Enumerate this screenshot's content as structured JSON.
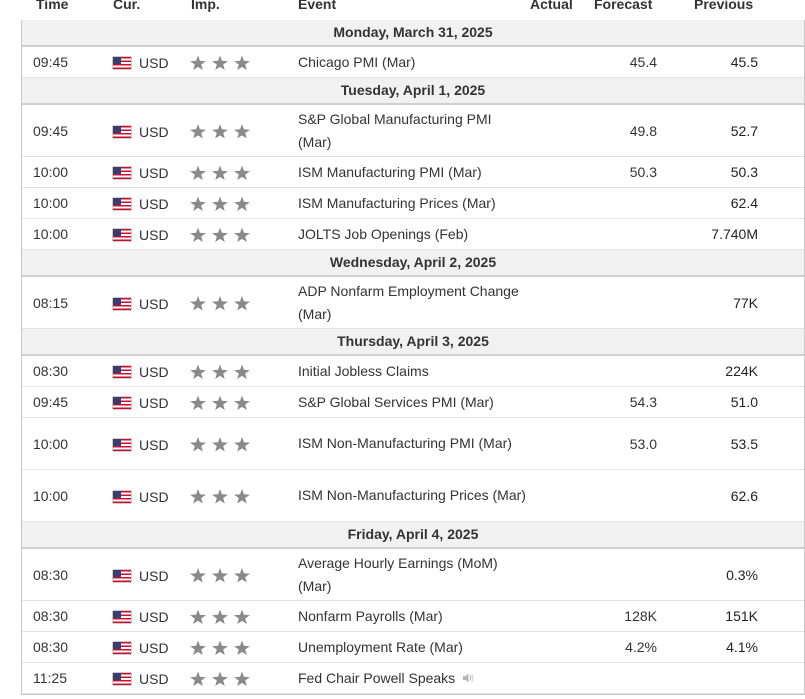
{
  "headers": {
    "time": "Time",
    "currency": "Cur.",
    "importance": "Imp.",
    "event": "Event",
    "actual": "Actual",
    "forecast": "Forecast",
    "previous": "Previous"
  },
  "colors": {
    "day_header_bg": "#f1f1f1",
    "star": "#8a8a8a",
    "border": "#c8c8c8"
  },
  "days": [
    {
      "label": "Monday, March 31, 2025",
      "events": [
        {
          "time": "09:45",
          "currency": "USD",
          "flag": "us-flag-icon",
          "importance": 3,
          "event": "Chicago PMI (Mar)",
          "actual": "",
          "forecast": "45.4",
          "previous": "45.5"
        }
      ]
    },
    {
      "label": "Tuesday, April 1, 2025",
      "events": [
        {
          "time": "09:45",
          "currency": "USD",
          "flag": "us-flag-icon",
          "importance": 3,
          "event": "S&P Global Manufacturing PMI (Mar)",
          "actual": "",
          "forecast": "49.8",
          "previous": "52.7"
        },
        {
          "time": "10:00",
          "currency": "USD",
          "flag": "us-flag-icon",
          "importance": 3,
          "event": "ISM Manufacturing PMI (Mar)",
          "actual": "",
          "forecast": "50.3",
          "previous": "50.3"
        },
        {
          "time": "10:00",
          "currency": "USD",
          "flag": "us-flag-icon",
          "importance": 3,
          "event": "ISM Manufacturing Prices (Mar)",
          "actual": "",
          "forecast": "",
          "previous": "62.4"
        },
        {
          "time": "10:00",
          "currency": "USD",
          "flag": "us-flag-icon",
          "importance": 3,
          "event": "JOLTS Job Openings (Feb)",
          "actual": "",
          "forecast": "",
          "previous": "7.740M"
        }
      ]
    },
    {
      "label": "Wednesday, April 2, 2025",
      "events": [
        {
          "time": "08:15",
          "currency": "USD",
          "flag": "us-flag-icon",
          "importance": 3,
          "event": "ADP Nonfarm Employment Change (Mar)",
          "actual": "",
          "forecast": "",
          "previous": "77K"
        }
      ]
    },
    {
      "label": "Thursday, April 3, 2025",
      "events": [
        {
          "time": "08:30",
          "currency": "USD",
          "flag": "us-flag-icon",
          "importance": 3,
          "event": "Initial Jobless Claims",
          "actual": "",
          "forecast": "",
          "previous": "224K"
        },
        {
          "time": "09:45",
          "currency": "USD",
          "flag": "us-flag-icon",
          "importance": 3,
          "event": "S&P Global Services PMI (Mar)",
          "actual": "",
          "forecast": "54.3",
          "previous": "51.0"
        },
        {
          "time": "10:00",
          "currency": "USD",
          "flag": "us-flag-icon",
          "importance": 3,
          "event": "ISM Non-Manufacturing PMI (Mar)",
          "actual": "",
          "forecast": "53.0",
          "previous": "53.5"
        },
        {
          "time": "10:00",
          "currency": "USD",
          "flag": "us-flag-icon",
          "importance": 3,
          "event": "ISM Non-Manufacturing Prices (Mar)",
          "actual": "",
          "forecast": "",
          "previous": "62.6"
        }
      ]
    },
    {
      "label": "Friday, April 4, 2025",
      "events": [
        {
          "time": "08:30",
          "currency": "USD",
          "flag": "us-flag-icon",
          "importance": 3,
          "event": "Average Hourly Earnings (MoM) (Mar)",
          "actual": "",
          "forecast": "",
          "previous": "0.3%"
        },
        {
          "time": "08:30",
          "currency": "USD",
          "flag": "us-flag-icon",
          "importance": 3,
          "event": "Nonfarm Payrolls (Mar)",
          "actual": "",
          "forecast": "128K",
          "previous": "151K"
        },
        {
          "time": "08:30",
          "currency": "USD",
          "flag": "us-flag-icon",
          "importance": 3,
          "event": "Unemployment Rate (Mar)",
          "actual": "",
          "forecast": "4.2%",
          "previous": "4.1%"
        },
        {
          "time": "11:25",
          "currency": "USD",
          "flag": "us-flag-icon",
          "importance": 3,
          "event": "Fed Chair Powell Speaks",
          "actual": "",
          "forecast": "",
          "previous": "",
          "icon": "speaker-icon"
        }
      ]
    }
  ]
}
